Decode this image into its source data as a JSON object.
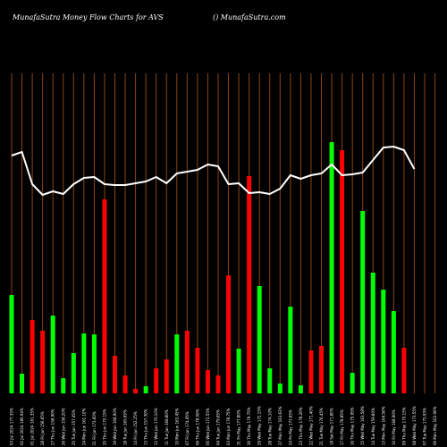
{
  "header": {
    "title_left": "MunafaSutra  Money Flow  Charts for AVS",
    "title_right": "() MunafaSutra.com"
  },
  "colors": {
    "background": "#000000",
    "grid": "#8B4513",
    "up": "#00FF00",
    "down": "#FF0000",
    "line": "#FFFFFF"
  },
  "chart_data": {
    "type": "bar",
    "title": "MunafaSutra  Money Flow  Charts for AVS",
    "grid": true,
    "categories": [
      "03 Jul 2024 177.35%",
      "02 Jul 2024 180.94%",
      "01 Jul 2024 161.35%",
      "28 Fri Jun 156.65%",
      "27 Thu Jun 158.90%",
      "26 Wed Jun 158.20%",
      "25 Tue Jun 157.45%",
      "24 Mon Jun 161.10%",
      "21 Fri Jun 173.60%",
      "20 Thu Jun 170.15%",
      "19 Wed Jun 168.90%",
      "18 Tue Jun 165.65%",
      "14 Fri Jun 152.25%",
      "13 Thu Jun 157.30%",
      "12 Wed Jun 170.10%",
      "11 Tue Jun 168.80%",
      "10 Mon Jun 163.45%",
      "07 Fri Jun 174.95%",
      "06 Thu Jun 178.06%",
      "05 Wed Jun 172.55%",
      "04 Tue Jun 179.65%",
      "03 Mon Jun 178.75%",
      "31 Fri May 177.80%",
      "30 Thu May 179.75%",
      "29 Wed May 172.15%",
      "28 Tue May 174.10%",
      "27 Mon May 163.63%",
      "24 Fri May 173.65%",
      "23 Thu May 178.20%",
      "22 Wed May 171.40%",
      "21 Tue May 176.45%",
      "18 Sat May 171.80%",
      "17 Fri May 178.85%",
      "16 Thu May 175.95%",
      "15 Wed May 163.58%",
      "14 Tue May 159.80%",
      "13 Mon May 164.50%",
      "10 Fri May 168.90%",
      "09 Thu May 170.15%",
      "08 Wed May 173.55%",
      "07 Tue May 175.95%",
      "06 Mon May 162.90%"
    ],
    "series": [
      {
        "values": [
          110,
          22,
          82,
          70,
          87,
          17,
          45,
          67,
          66,
          217,
          42,
          20,
          5,
          8,
          28,
          38,
          66,
          70,
          51,
          26,
          20,
          132,
          50,
          243,
          120,
          28,
          11,
          97,
          9,
          48,
          53,
          281,
          272,
          23,
          204,
          135,
          116,
          92,
          51,
          0,
          0,
          0
        ]
      },
      {
        "values": [
          266,
          270,
          234,
          222,
          226,
          223,
          234,
          241,
          242,
          234,
          233,
          233,
          235,
          237,
          242,
          235,
          246,
          248,
          250,
          256,
          254,
          234,
          235,
          224,
          225,
          223,
          229,
          244,
          240,
          244,
          246,
          256,
          244,
          245,
          247,
          261,
          275,
          276,
          272,
          251,
          0,
          0
        ]
      }
    ],
    "bar_colors": [
      "green",
      "green",
      "red",
      "red",
      "green",
      "green",
      "green",
      "green",
      "green",
      "red",
      "red",
      "red",
      "red",
      "green",
      "red",
      "red",
      "green",
      "red",
      "red",
      "red",
      "red",
      "red",
      "green",
      "red",
      "green",
      "green",
      "green",
      "green",
      "green",
      "red",
      "red",
      "green",
      "red",
      "green",
      "green",
      "green",
      "green",
      "green",
      "red",
      "red",
      "red",
      "red"
    ]
  }
}
